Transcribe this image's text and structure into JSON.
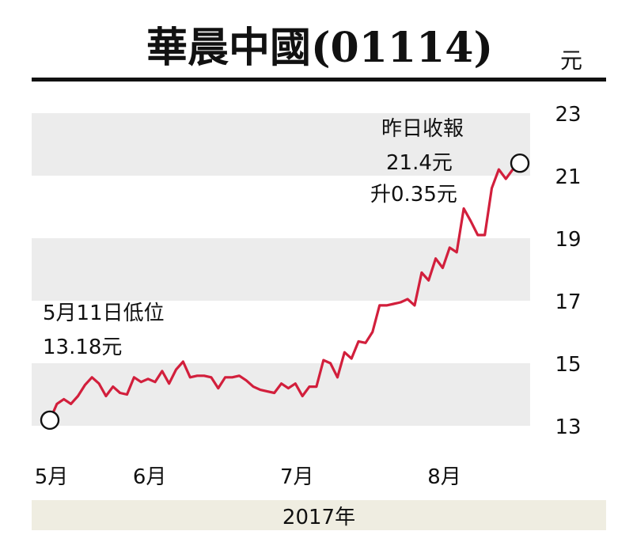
{
  "title": "華晨中國(01114)",
  "unit": "元",
  "footer_label": "2017年",
  "colors": {
    "line": "#d21f3c",
    "band": "#ececec",
    "footer": "#efede1"
  },
  "annotations": {
    "low": {
      "line1": "5月11日低位",
      "line2": "13.18元"
    },
    "close": {
      "line1": "昨日收報",
      "line2": "21.4元",
      "line3": "升0.35元"
    }
  },
  "chart_data": {
    "type": "line",
    "title": "華晨中國(01114)",
    "ylabel": "元",
    "xlabel": "2017年",
    "ylim": [
      12.9,
      23.0
    ],
    "yticks": [
      13,
      15,
      17,
      19,
      21,
      23
    ],
    "xticks": [
      {
        "label": "5月",
        "index": 0
      },
      {
        "label": "6月",
        "index": 14
      },
      {
        "label": "7月",
        "index": 35
      },
      {
        "label": "8月",
        "index": 56
      }
    ],
    "series": [
      {
        "values": [
          13.18,
          13.7,
          13.85,
          13.7,
          13.95,
          14.3,
          14.55,
          14.35,
          13.95,
          14.25,
          14.05,
          14.0,
          14.55,
          14.4,
          14.5,
          14.4,
          14.75,
          14.35,
          14.8,
          15.05,
          14.55,
          14.6,
          14.6,
          14.55,
          14.2,
          14.55,
          14.55,
          14.6,
          14.45,
          14.25,
          14.15,
          14.1,
          14.05,
          14.35,
          14.2,
          14.35,
          13.95,
          14.25,
          14.25,
          15.1,
          15.0,
          14.55,
          15.35,
          15.15,
          15.7,
          15.65,
          16.0,
          16.85,
          16.85,
          16.9,
          16.95,
          17.05,
          16.85,
          17.9,
          17.65,
          18.35,
          18.05,
          18.7,
          18.55,
          19.95,
          19.55,
          19.1,
          19.1,
          20.6,
          21.2,
          20.9,
          21.2,
          21.4
        ]
      }
    ],
    "markers": [
      {
        "index": 0,
        "value": 13.18
      },
      {
        "index": 67,
        "value": 21.4
      }
    ]
  }
}
